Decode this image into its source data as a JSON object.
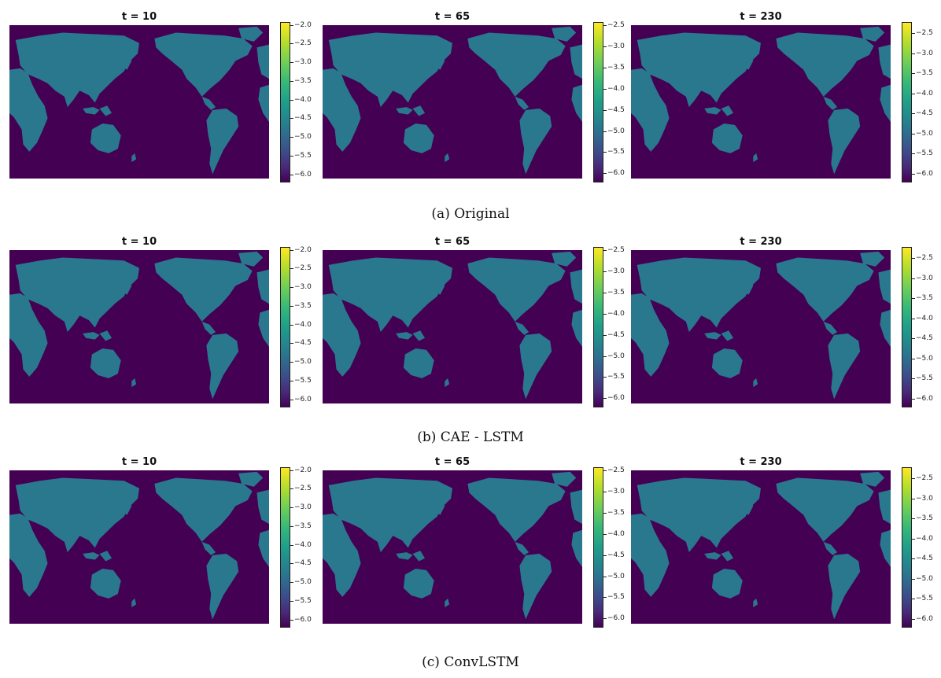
{
  "figure": {
    "rows": [
      {
        "caption": "(a) Original",
        "panels": [
          {
            "title": "t =  10",
            "colorbar": {
              "ticks": [
                "-2.0",
                "-2.5",
                "-3.0",
                "-3.5",
                "-4.0",
                "-4.5",
                "-5.0",
                "-5.5",
                "-6.0"
              ],
              "range": [
                -6.2,
                -1.9
              ]
            }
          },
          {
            "title": "t =  65",
            "colorbar": {
              "ticks": [
                "-2.5",
                "-3.0",
                "-3.5",
                "-4.0",
                "-4.5",
                "-5.0",
                "-5.5",
                "-6.0"
              ],
              "range": [
                -6.2,
                -2.4
              ]
            }
          },
          {
            "title": "t =  230",
            "colorbar": {
              "ticks": [
                "-2.5",
                "-3.0",
                "-3.5",
                "-4.0",
                "-4.5",
                "-5.0",
                "-5.5",
                "-6.0"
              ],
              "range": [
                -6.2,
                -2.2
              ]
            }
          }
        ]
      },
      {
        "caption": "(b) CAE - LSTM",
        "panels": [
          {
            "title": "t =  10",
            "colorbar": {
              "ticks": [
                "-2.0",
                "-2.5",
                "-3.0",
                "-3.5",
                "-4.0",
                "-4.5",
                "-5.0",
                "-5.5",
                "-6.0"
              ],
              "range": [
                -6.2,
                -1.9
              ]
            }
          },
          {
            "title": "t =  65",
            "colorbar": {
              "ticks": [
                "-2.5",
                "-3.0",
                "-3.5",
                "-4.0",
                "-4.5",
                "-5.0",
                "-5.5",
                "-6.0"
              ],
              "range": [
                -6.2,
                -2.4
              ]
            }
          },
          {
            "title": "t =  230",
            "colorbar": {
              "ticks": [
                "-2.5",
                "-3.0",
                "-3.5",
                "-4.0",
                "-4.5",
                "-5.0",
                "-5.5",
                "-6.0"
              ],
              "range": [
                -6.2,
                -2.2
              ]
            }
          }
        ]
      },
      {
        "caption": "(c) ConvLSTM",
        "panels": [
          {
            "title": "t =  10",
            "colorbar": {
              "ticks": [
                "-2.0",
                "-2.5",
                "-3.0",
                "-3.5",
                "-4.0",
                "-4.5",
                "-5.0",
                "-5.5",
                "-6.0"
              ],
              "range": [
                -6.2,
                -1.9
              ]
            }
          },
          {
            "title": "t =  65",
            "colorbar": {
              "ticks": [
                "-2.5",
                "-3.0",
                "-3.5",
                "-4.0",
                "-4.5",
                "-5.0",
                "-5.5",
                "-6.0"
              ],
              "range": [
                -6.2,
                -2.4
              ]
            }
          },
          {
            "title": "t =  230",
            "colorbar": {
              "ticks": [
                "-2.5",
                "-3.0",
                "-3.5",
                "-4.0",
                "-4.5",
                "-5.0",
                "-5.5",
                "-6.0"
              ],
              "range": [
                -6.2,
                -2.2
              ]
            }
          }
        ]
      }
    ]
  },
  "colors": {
    "ocean": "#440154",
    "land": "#2a788e",
    "hot": "#b5de2b",
    "peak": "#fde725"
  }
}
